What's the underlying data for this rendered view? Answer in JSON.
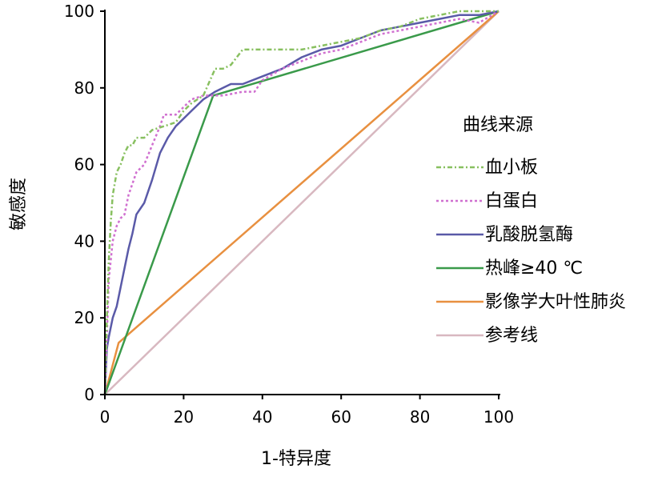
{
  "chart_data": {
    "type": "line",
    "xlabel": "1-特异度",
    "ylabel": "敏感度",
    "xlim": [
      0,
      100
    ],
    "ylim": [
      0,
      100
    ],
    "xticks": [
      "0",
      "20",
      "40",
      "60",
      "80",
      "100"
    ],
    "yticks": [
      "0",
      "20",
      "40",
      "60",
      "80",
      "100"
    ],
    "grid": false,
    "legend": {
      "title": "曲线来源",
      "placement": "right"
    },
    "series": [
      {
        "name": "血小板",
        "color": "#88c060",
        "dash": "dash-dot",
        "x": [
          0,
          0.5,
          1,
          1.5,
          2,
          3,
          4,
          5,
          6,
          7,
          8,
          10,
          12,
          15,
          18,
          20,
          22,
          25,
          28,
          30,
          32,
          35,
          40,
          45,
          50,
          55,
          60,
          65,
          70,
          75,
          80,
          85,
          90,
          95,
          100
        ],
        "y": [
          0,
          20,
          35,
          45,
          52,
          58,
          60,
          63,
          65,
          65,
          67,
          67,
          69,
          70,
          71,
          74,
          76,
          78,
          85,
          85,
          86,
          90,
          90,
          90,
          90,
          91,
          92,
          93,
          95,
          96,
          98,
          99,
          100,
          100,
          100
        ]
      },
      {
        "name": "白蛋白",
        "color": "#d070d0",
        "dash": "dotted",
        "x": [
          0,
          0.5,
          1,
          2,
          3,
          4,
          5,
          6,
          8,
          10,
          12,
          14,
          15,
          18,
          20,
          22,
          25,
          30,
          35,
          38,
          40,
          45,
          50,
          55,
          60,
          65,
          70,
          75,
          80,
          85,
          90,
          95,
          100
        ],
        "y": [
          0,
          15,
          30,
          40,
          44,
          46,
          47,
          52,
          58,
          60,
          65,
          70,
          73,
          73,
          75,
          77,
          78,
          78,
          79,
          79,
          82,
          85,
          87,
          89,
          90,
          92,
          94,
          95,
          96,
          97,
          98,
          97,
          100
        ]
      },
      {
        "name": "乳酸脱氢酶",
        "color": "#5a5aa8",
        "dash": "solid",
        "x": [
          0,
          0.5,
          1,
          2,
          3,
          4,
          5,
          6,
          7,
          8,
          10,
          12,
          14,
          16,
          18,
          20,
          22,
          25,
          28,
          30,
          32,
          35,
          40,
          45,
          50,
          55,
          60,
          65,
          70,
          75,
          80,
          85,
          90,
          95,
          100
        ],
        "y": [
          0,
          12,
          15,
          20,
          23,
          28,
          33,
          38,
          42,
          47,
          50,
          56,
          63,
          67,
          70,
          72,
          74,
          77,
          79,
          80,
          81,
          81,
          83,
          85,
          88,
          90,
          91,
          93,
          95,
          96,
          97,
          98,
          99,
          99,
          100
        ]
      },
      {
        "name": "热峰≥40 ℃",
        "color": "#3a9a4a",
        "dash": "solid",
        "x": [
          0,
          27.5,
          100
        ],
        "y": [
          0,
          78,
          100
        ]
      },
      {
        "name": "影像学大叶性肺炎",
        "color": "#e89040",
        "dash": "solid",
        "x": [
          0,
          3.5,
          100
        ],
        "y": [
          0,
          13.5,
          100
        ]
      },
      {
        "name": "参考线",
        "color": "#d8b8c0",
        "dash": "solid",
        "x": [
          0,
          100
        ],
        "y": [
          0,
          100
        ]
      }
    ]
  }
}
